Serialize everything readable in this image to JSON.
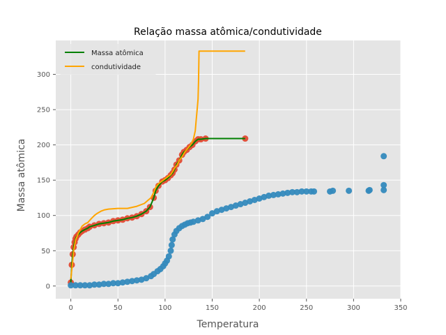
{
  "chart_data": {
    "type": "scatter",
    "title": "Relação massa atômica/condutividade",
    "xlabel": "Temperatura",
    "ylabel": "Massa atômica",
    "xlim": [
      -16,
      350
    ],
    "ylim": [
      -18,
      348
    ],
    "xticks": [
      0,
      50,
      100,
      150,
      200,
      250,
      300,
      350
    ],
    "yticks": [
      0,
      50,
      100,
      150,
      200,
      250,
      300
    ],
    "grid": true,
    "legend_position": "top-left",
    "legend": [
      {
        "label": "Massa atômica",
        "color": "#008000"
      },
      {
        "label": "condutividade",
        "color": "#FFA500"
      }
    ],
    "colors": {
      "background": "#E5E5E5",
      "grid": "#FFFFFF",
      "red_points": "#E24A33",
      "blue_points": "#348ABD",
      "green_line": "#008000",
      "orange_line": "#FFA500"
    },
    "series": [
      {
        "kind": "scatter",
        "color": "#E24A33",
        "points": [
          [
            0,
            5
          ],
          [
            1,
            30
          ],
          [
            2,
            45
          ],
          [
            3,
            55
          ],
          [
            4,
            62
          ],
          [
            5,
            67
          ],
          [
            6,
            70
          ],
          [
            8,
            73
          ],
          [
            10,
            76
          ],
          [
            12,
            78
          ],
          [
            15,
            80
          ],
          [
            18,
            82
          ],
          [
            20,
            84
          ],
          [
            25,
            86
          ],
          [
            30,
            88
          ],
          [
            35,
            89
          ],
          [
            40,
            90
          ],
          [
            45,
            92
          ],
          [
            50,
            93
          ],
          [
            55,
            94
          ],
          [
            60,
            96
          ],
          [
            65,
            97
          ],
          [
            70,
            99
          ],
          [
            75,
            102
          ],
          [
            80,
            106
          ],
          [
            84,
            112
          ],
          [
            88,
            125
          ],
          [
            90,
            135
          ],
          [
            93,
            142
          ],
          [
            97,
            148
          ],
          [
            100,
            150
          ],
          [
            103,
            153
          ],
          [
            106,
            157
          ],
          [
            108,
            160
          ],
          [
            110,
            165
          ],
          [
            112,
            172
          ],
          [
            115,
            178
          ],
          [
            118,
            186
          ],
          [
            120,
            190
          ],
          [
            123,
            193
          ],
          [
            126,
            197
          ],
          [
            129,
            200
          ],
          [
            132,
            205
          ],
          [
            135,
            208
          ],
          [
            138,
            208
          ],
          [
            143,
            209
          ],
          [
            185,
            209
          ]
        ]
      },
      {
        "kind": "line",
        "name": "Massa atômica",
        "color": "#008000",
        "points": [
          [
            0,
            5
          ],
          [
            1,
            30
          ],
          [
            2,
            45
          ],
          [
            3,
            55
          ],
          [
            4,
            62
          ],
          [
            5,
            67
          ],
          [
            6,
            70
          ],
          [
            8,
            73
          ],
          [
            10,
            76
          ],
          [
            12,
            78
          ],
          [
            15,
            80
          ],
          [
            18,
            82
          ],
          [
            20,
            84
          ],
          [
            25,
            86
          ],
          [
            30,
            88
          ],
          [
            35,
            89
          ],
          [
            40,
            90
          ],
          [
            45,
            92
          ],
          [
            50,
            93
          ],
          [
            55,
            94
          ],
          [
            60,
            96
          ],
          [
            65,
            97
          ],
          [
            70,
            99
          ],
          [
            75,
            102
          ],
          [
            80,
            106
          ],
          [
            84,
            112
          ],
          [
            88,
            125
          ],
          [
            90,
            135
          ],
          [
            93,
            142
          ],
          [
            97,
            148
          ],
          [
            100,
            150
          ],
          [
            103,
            153
          ],
          [
            106,
            157
          ],
          [
            108,
            160
          ],
          [
            110,
            165
          ],
          [
            112,
            172
          ],
          [
            115,
            178
          ],
          [
            118,
            186
          ],
          [
            120,
            190
          ],
          [
            123,
            193
          ],
          [
            126,
            197
          ],
          [
            129,
            200
          ],
          [
            132,
            205
          ],
          [
            135,
            208
          ],
          [
            138,
            208
          ],
          [
            143,
            209
          ],
          [
            185,
            209
          ]
        ]
      },
      {
        "kind": "line",
        "name": "condutividade",
        "color": "#FFA500",
        "points": [
          [
            0,
            10
          ],
          [
            2,
            35
          ],
          [
            3,
            50
          ],
          [
            5,
            65
          ],
          [
            8,
            75
          ],
          [
            10,
            80
          ],
          [
            12,
            85
          ],
          [
            15,
            88
          ],
          [
            18,
            90
          ],
          [
            20,
            93
          ],
          [
            22,
            96
          ],
          [
            25,
            100
          ],
          [
            28,
            103
          ],
          [
            32,
            106
          ],
          [
            36,
            108
          ],
          [
            40,
            109
          ],
          [
            50,
            110
          ],
          [
            60,
            110
          ],
          [
            70,
            113
          ],
          [
            78,
            117
          ],
          [
            85,
            125
          ],
          [
            88,
            133
          ],
          [
            90,
            140
          ],
          [
            93,
            145
          ],
          [
            96,
            148
          ],
          [
            100,
            152
          ],
          [
            103,
            155
          ],
          [
            106,
            158
          ],
          [
            108,
            162
          ],
          [
            110,
            167
          ],
          [
            113,
            172
          ],
          [
            115,
            178
          ],
          [
            118,
            183
          ],
          [
            121,
            190
          ],
          [
            124,
            195
          ],
          [
            127,
            200
          ],
          [
            130,
            208
          ],
          [
            132,
            220
          ],
          [
            133,
            235
          ],
          [
            134,
            250
          ],
          [
            135,
            265
          ],
          [
            135.5,
            290
          ],
          [
            136,
            333
          ],
          [
            185,
            333
          ]
        ]
      },
      {
        "kind": "scatter",
        "color": "#348ABD",
        "points": [
          [
            0,
            1
          ],
          [
            5,
            1
          ],
          [
            10,
            1
          ],
          [
            15,
            1
          ],
          [
            20,
            1
          ],
          [
            25,
            2
          ],
          [
            30,
            2
          ],
          [
            35,
            3
          ],
          [
            40,
            3
          ],
          [
            45,
            4
          ],
          [
            50,
            4
          ],
          [
            55,
            5
          ],
          [
            60,
            6
          ],
          [
            65,
            7
          ],
          [
            70,
            8
          ],
          [
            75,
            9
          ],
          [
            80,
            11
          ],
          [
            85,
            14
          ],
          [
            88,
            17
          ],
          [
            92,
            21
          ],
          [
            95,
            24
          ],
          [
            98,
            28
          ],
          [
            100,
            32
          ],
          [
            102,
            36
          ],
          [
            104,
            42
          ],
          [
            106,
            50
          ],
          [
            107,
            58
          ],
          [
            108,
            66
          ],
          [
            110,
            73
          ],
          [
            112,
            78
          ],
          [
            115,
            82
          ],
          [
            118,
            85
          ],
          [
            121,
            87
          ],
          [
            124,
            89
          ],
          [
            127,
            90
          ],
          [
            130,
            91
          ],
          [
            135,
            93
          ],
          [
            140,
            95
          ],
          [
            145,
            98
          ],
          [
            150,
            103
          ],
          [
            155,
            106
          ],
          [
            160,
            108
          ],
          [
            165,
            110
          ],
          [
            170,
            112
          ],
          [
            175,
            114
          ],
          [
            180,
            116
          ],
          [
            185,
            118
          ],
          [
            190,
            120
          ],
          [
            195,
            122
          ],
          [
            200,
            124
          ],
          [
            205,
            126
          ],
          [
            210,
            128
          ],
          [
            215,
            129
          ],
          [
            220,
            130
          ],
          [
            225,
            131
          ],
          [
            230,
            132
          ],
          [
            235,
            133
          ],
          [
            240,
            133
          ],
          [
            245,
            134
          ],
          [
            250,
            134
          ],
          [
            255,
            134
          ],
          [
            258,
            134
          ],
          [
            275,
            134
          ],
          [
            278,
            135
          ],
          [
            295,
            135
          ],
          [
            316,
            135
          ],
          [
            317,
            136
          ],
          [
            332,
            136
          ],
          [
            332,
            143
          ],
          [
            332,
            184
          ]
        ]
      }
    ]
  }
}
